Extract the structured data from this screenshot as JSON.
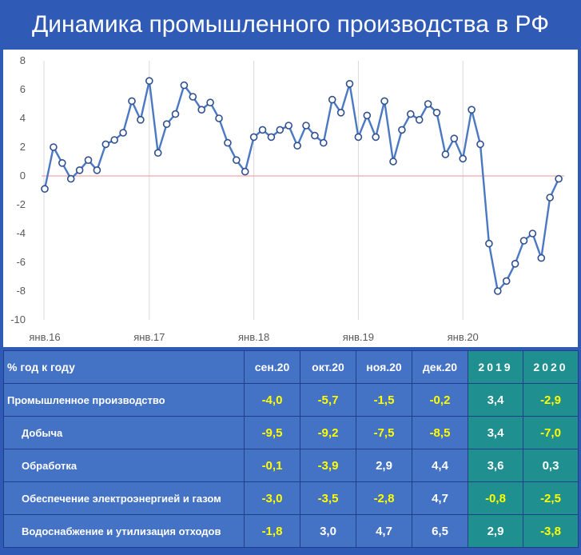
{
  "title": "Динамика промышленного производства в РФ",
  "colors": {
    "background": "#2f5bb7",
    "line": "#4a78c2",
    "zero_line": "#f4a6a6",
    "table_cell": "#4472c4",
    "year_cell": "#1f8f8f",
    "negative_text": "#ffff00",
    "positive_text": "#ffffff"
  },
  "chart_data": {
    "type": "line",
    "title": "",
    "xlabel": "",
    "ylabel": "",
    "ylim": [
      -10,
      8
    ],
    "yticks": [
      "8",
      "6",
      "4",
      "2",
      "0",
      "-2",
      "-4",
      "-6",
      "-8",
      "-10"
    ],
    "xticks": [
      "янв.16",
      "янв.17",
      "янв.18",
      "янв.19",
      "янв.20"
    ],
    "grid": "vertical at January",
    "series": [
      {
        "name": "",
        "values": [
          -0.9,
          2.0,
          0.9,
          -0.2,
          0.4,
          1.1,
          0.4,
          2.2,
          2.5,
          3.0,
          5.2,
          3.9,
          6.6,
          1.6,
          3.6,
          4.3,
          6.3,
          5.5,
          4.6,
          5.1,
          4.0,
          2.3,
          1.1,
          0.3,
          2.7,
          3.2,
          2.7,
          3.2,
          3.5,
          2.1,
          3.5,
          2.8,
          2.3,
          5.3,
          4.4,
          6.4,
          2.7,
          4.2,
          2.7,
          5.2,
          1.0,
          3.2,
          4.3,
          3.9,
          5.0,
          4.4,
          1.5,
          2.6,
          1.2,
          4.6,
          2.2,
          -4.7,
          -8.0,
          -7.3,
          -6.1,
          -4.5,
          -4.0,
          -5.7,
          -1.5,
          -0.2
        ]
      }
    ]
  },
  "table": {
    "header": [
      "% год к году",
      "сен.20",
      "окт.20",
      "ноя.20",
      "дек.20",
      "2019",
      "2020"
    ],
    "rows": [
      {
        "label": "Промышленное производство",
        "indent": false,
        "values": [
          "-4,0",
          "-5,7",
          "-1,5",
          "-0,2",
          "3,4",
          "-2,9"
        ]
      },
      {
        "label": "Добыча",
        "indent": true,
        "values": [
          "-9,5",
          "-9,2",
          "-7,5",
          "-8,5",
          "3,4",
          "-7,0"
        ]
      },
      {
        "label": "Обработка",
        "indent": true,
        "values": [
          "-0,1",
          "-3,9",
          "2,9",
          "4,4",
          "3,6",
          "0,3"
        ]
      },
      {
        "label": "Обеспечение электроэнергией и газом",
        "indent": true,
        "values": [
          "-3,0",
          "-3,5",
          "-2,8",
          "4,7",
          "-0,8",
          "-2,5"
        ]
      },
      {
        "label": "Водоснабжение и утилизация отходов",
        "indent": true,
        "values": [
          "-1,8",
          "3,0",
          "4,7",
          "6,5",
          "2,9",
          "-3,8"
        ]
      }
    ]
  }
}
